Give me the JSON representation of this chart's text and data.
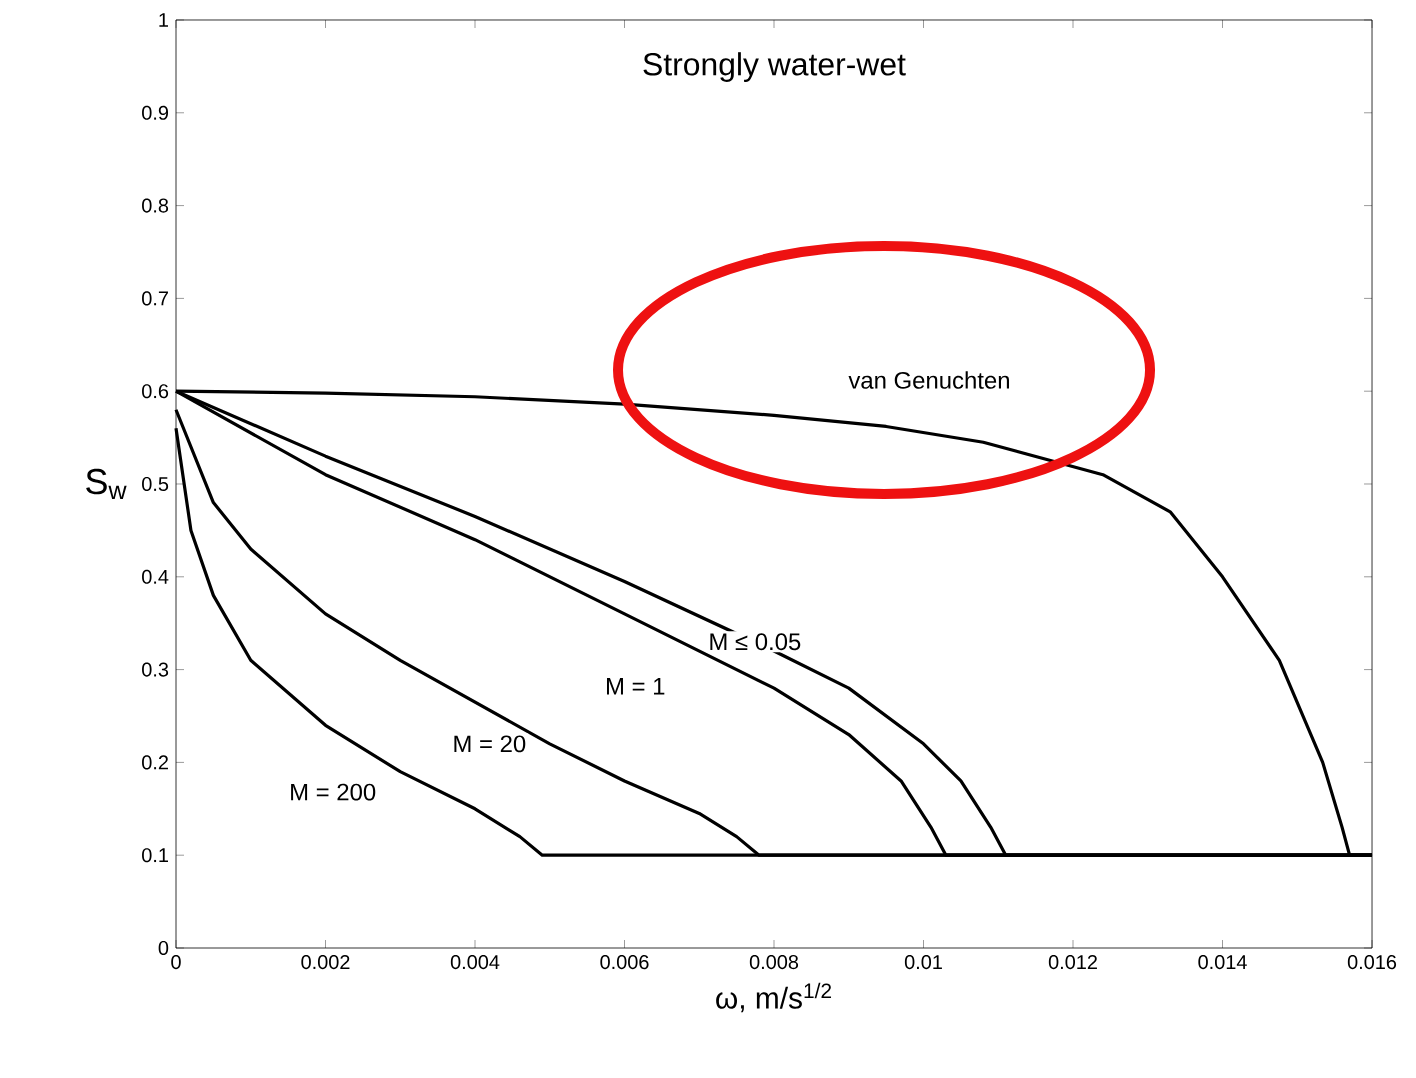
{
  "chart_data": {
    "type": "line",
    "title": "Strongly water-wet",
    "xlabel": "ω, m/s$^{1/2}$",
    "ylabel": "S$_{w}$",
    "xlim": [
      0,
      0.016
    ],
    "ylim": [
      0,
      1
    ],
    "xticks": [
      0,
      0.002,
      0.004,
      0.006,
      0.008,
      0.01,
      0.012,
      0.014,
      0.016
    ],
    "yticks": [
      0,
      0.1,
      0.2,
      0.3,
      0.4,
      0.5,
      0.6,
      0.7,
      0.8,
      0.9,
      1
    ],
    "grid": false,
    "legend": false,
    "marker": "none",
    "line_style": "solid",
    "series": [
      {
        "color": "#000000",
        "x": [
          0,
          0.002,
          0.004,
          0.006,
          0.008,
          0.0095,
          0.0108,
          0.0124,
          0.0133,
          0.014,
          0.01476,
          0.01534,
          0.0156,
          0.0157,
          0.016
        ],
        "values": [
          0.6,
          0.598,
          0.594,
          0.586,
          0.574,
          0.562,
          0.545,
          0.51,
          0.47,
          0.4,
          0.31,
          0.2,
          0.13,
          0.1,
          0.1
        ]
      },
      {
        "color": "#000000",
        "x": [
          0,
          0.002,
          0.004,
          0.006,
          0.008,
          0.009,
          0.01,
          0.0105,
          0.0109,
          0.0111,
          0.016
        ],
        "values": [
          0.6,
          0.53,
          0.465,
          0.395,
          0.32,
          0.28,
          0.22,
          0.18,
          0.13,
          0.1,
          0.1
        ]
      },
      {
        "color": "#000000",
        "x": [
          0,
          0.002,
          0.004,
          0.006,
          0.008,
          0.009,
          0.0097,
          0.0101,
          0.0103,
          0.016
        ],
        "values": [
          0.6,
          0.51,
          0.44,
          0.36,
          0.28,
          0.23,
          0.18,
          0.13,
          0.1,
          0.1
        ]
      },
      {
        "color": "#000000",
        "x": [
          0,
          0.0005,
          0.001,
          0.002,
          0.003,
          0.004,
          0.005,
          0.006,
          0.007,
          0.0075,
          0.0078,
          0.016
        ],
        "values": [
          0.58,
          0.48,
          0.43,
          0.36,
          0.31,
          0.265,
          0.22,
          0.18,
          0.145,
          0.12,
          0.1,
          0.1
        ]
      },
      {
        "color": "#000000",
        "x": [
          0,
          0.0002,
          0.0005,
          0.001,
          0.002,
          0.003,
          0.004,
          0.0046,
          0.0049,
          0.016
        ],
        "values": [
          0.56,
          0.45,
          0.38,
          0.31,
          0.24,
          0.19,
          0.15,
          0.12,
          0.1,
          0.1
        ]
      }
    ],
    "annotations": [
      "van Genuchten",
      "M ≤ 0.05",
      "M = 1",
      "M = 20",
      "M = 200"
    ]
  }
}
